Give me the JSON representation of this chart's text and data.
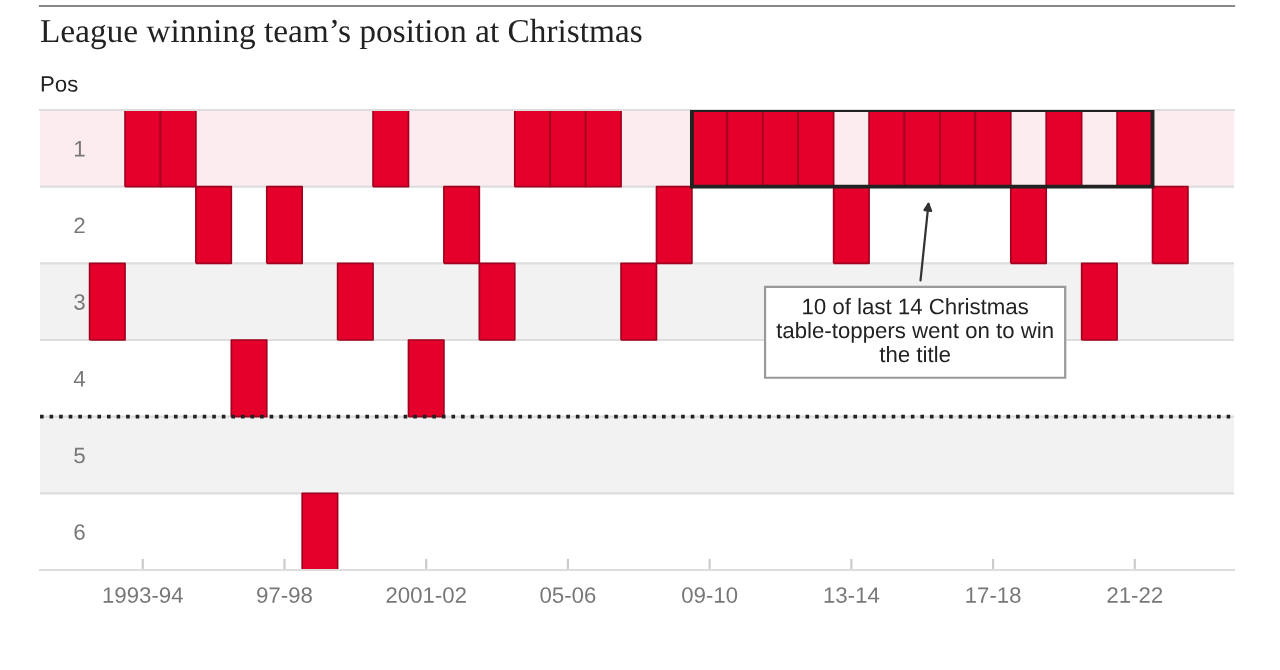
{
  "chart_data": {
    "type": "scatter",
    "title": "League winning team’s position at Christmas",
    "ylabel": "Pos",
    "categories": [
      null,
      "1993-94",
      null,
      null,
      null,
      "97-98",
      null,
      null,
      null,
      "2001-02",
      null,
      null,
      null,
      "05-06",
      null,
      null,
      null,
      "09-10",
      null,
      null,
      null,
      "13-14",
      null,
      null,
      null,
      "17-18",
      null,
      null,
      null,
      "21-22",
      null
    ],
    "series": [
      {
        "color": "#e4002b",
        "values": [
          3,
          1,
          1,
          2,
          4,
          2,
          6,
          3,
          1,
          4,
          2,
          3,
          1,
          1,
          1,
          3,
          2,
          1,
          1,
          1,
          1,
          2,
          1,
          1,
          1,
          1,
          2,
          1,
          3,
          1,
          2
        ]
      }
    ],
    "marker": "square",
    "ylim": [
      6.5,
      0.5
    ],
    "yticks": [
      1,
      2,
      3,
      4,
      5,
      6
    ],
    "bands": [
      {
        "axis": "y",
        "from": 0.5,
        "to": 1.5,
        "color": "#fdecef"
      },
      {
        "axis": "y",
        "from": 2.5,
        "to": 3.5,
        "color": "#f2f2f2"
      },
      {
        "axis": "y",
        "from": 4.5,
        "to": 5.5,
        "color": "#f2f2f2"
      }
    ],
    "ref_lines": [
      {
        "axis": "y",
        "value": 4.5,
        "color": "#222222",
        "line_style": "dotted"
      }
    ],
    "annotations": [
      "10 of last 14 Christmas\ntable-toppers went on to win\nthe title"
    ],
    "grid": false,
    "legend": false
  }
}
